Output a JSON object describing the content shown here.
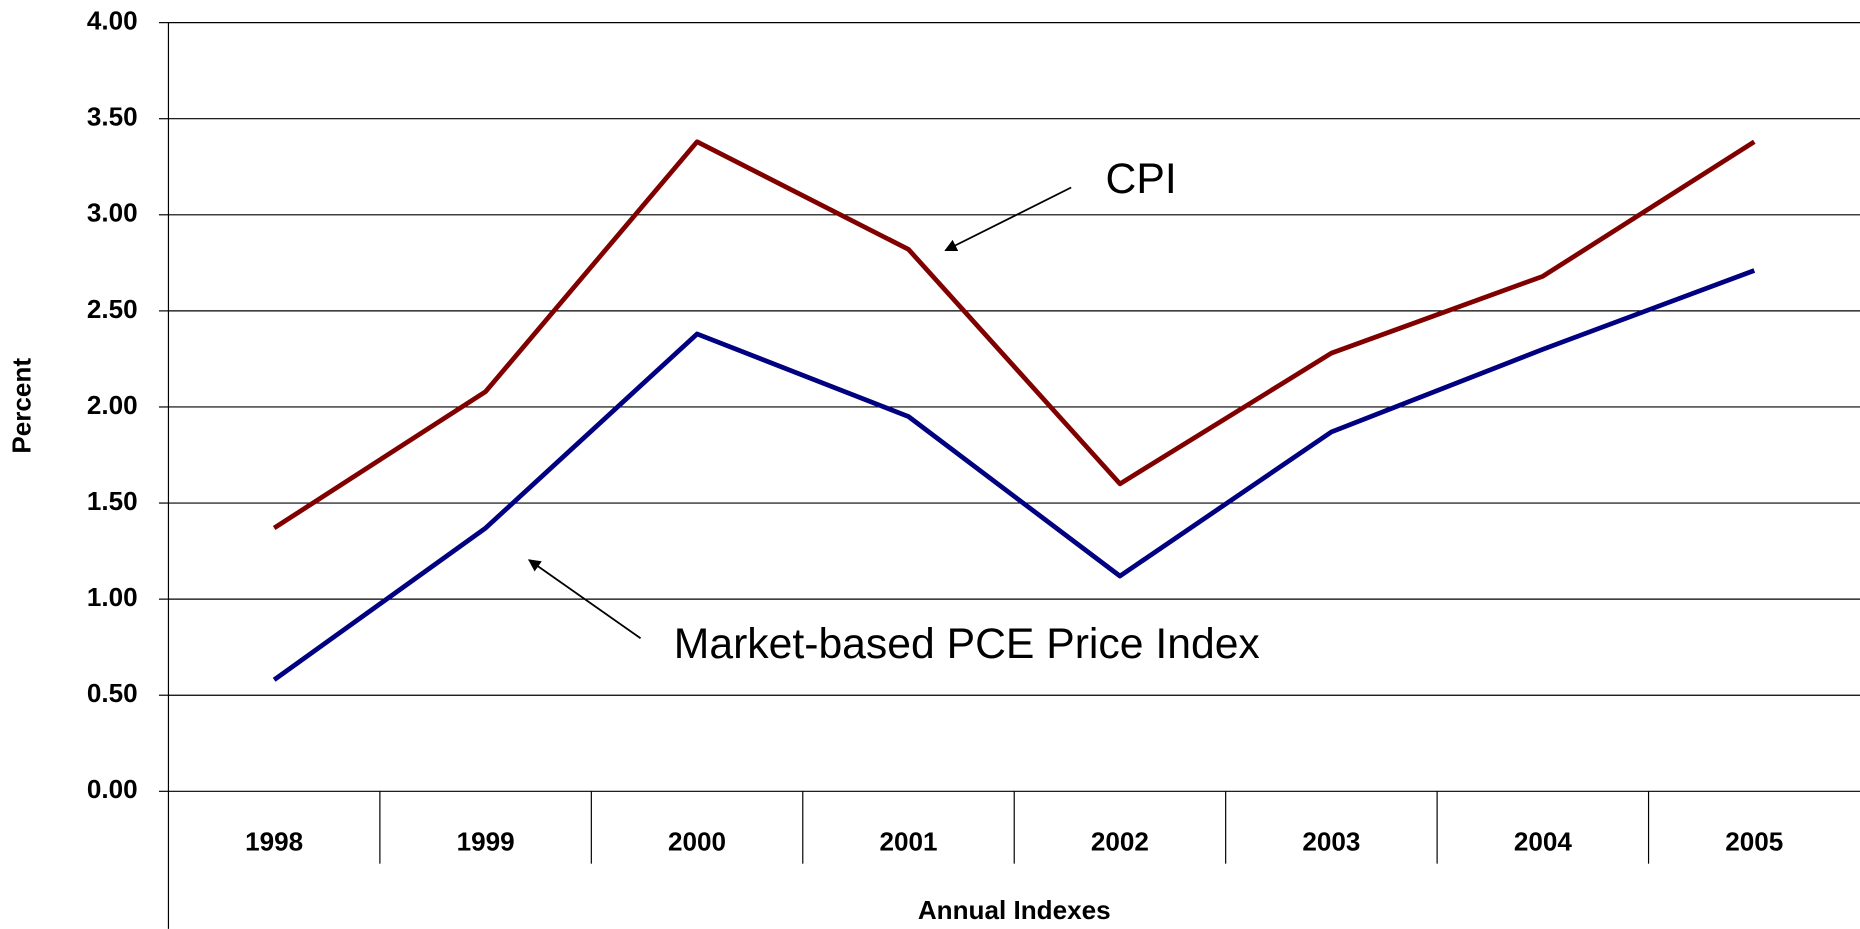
{
  "chart_data": {
    "type": "line",
    "x_label": "Annual Indexes",
    "y_label": "Percent",
    "categories": [
      "1998",
      "1999",
      "2000",
      "2001",
      "2002",
      "2003",
      "2004",
      "2005"
    ],
    "series": [
      {
        "name": "CPI",
        "color": "#800000",
        "values": [
          1.37,
          2.08,
          3.38,
          2.82,
          1.6,
          2.28,
          2.68,
          3.38
        ]
      },
      {
        "name": "Market-based PCE Price Index",
        "color": "#000080",
        "values": [
          0.58,
          1.37,
          2.38,
          1.95,
          1.12,
          1.87,
          2.3,
          2.71
        ]
      }
    ],
    "ylim": [
      0,
      4
    ],
    "yticks": [
      {
        "value": 0,
        "label": "0.00"
      },
      {
        "value": 0.5,
        "label": "0.50"
      },
      {
        "value": 1,
        "label": "1.00"
      },
      {
        "value": 1.5,
        "label": "1.50"
      },
      {
        "value": 2,
        "label": "2.00"
      },
      {
        "value": 2.5,
        "label": "2.50"
      },
      {
        "value": 3,
        "label": "3.00"
      },
      {
        "value": 3.5,
        "label": "3.50"
      },
      {
        "value": 4,
        "label": "4.00"
      }
    ],
    "grid": true
  }
}
